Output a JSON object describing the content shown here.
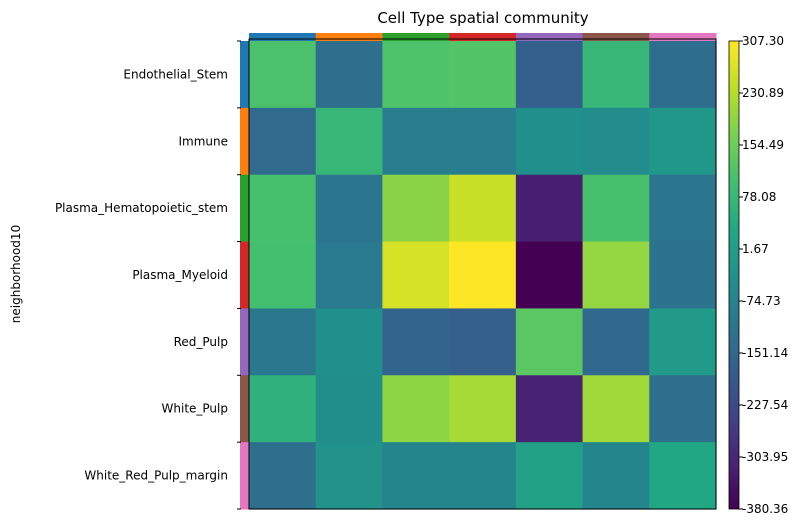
{
  "chart_data": {
    "type": "heatmap",
    "title": "Cell Type spatial community",
    "ylabel": "neighborhood10",
    "rows": [
      "Endothelial_Stem",
      "Immune",
      "Plasma_Hematopoietic_stem",
      "Plasma_Myeloid",
      "Red_Pulp",
      "White_Pulp",
      "White_Red_Pulp_margin"
    ],
    "row_colors": [
      "#1f77b4",
      "#ff7f0e",
      "#2ca02c",
      "#d62728",
      "#9467bd",
      "#8c564b",
      "#e377c2"
    ],
    "col_colors": [
      "#1f77b4",
      "#ff7f0e",
      "#2ca02c",
      "#d62728",
      "#9467bd",
      "#8c564b",
      "#e377c2"
    ],
    "values": [
      [
        110,
        -130,
        115,
        120,
        -170,
        75,
        -135
      ],
      [
        -140,
        75,
        -90,
        -90,
        -40,
        -50,
        -20
      ],
      [
        105,
        -110,
        185,
        250,
        -320,
        105,
        -110
      ],
      [
        100,
        -100,
        265,
        307.3,
        -380.36,
        195,
        -120
      ],
      [
        -105,
        -40,
        -160,
        -175,
        130,
        -150,
        -10
      ],
      [
        60,
        -45,
        190,
        215,
        -315,
        210,
        -130
      ],
      [
        -130,
        -30,
        -70,
        -70,
        10,
        -70,
        30
      ]
    ],
    "colorbar": {
      "min": -380.36,
      "max": 307.3,
      "ticks": [
        "307.30",
        "230.89",
        "154.49",
        "78.08",
        "1.67",
        "-74.73",
        "-151.14",
        "-227.54",
        "-303.95",
        "-380.36"
      ]
    },
    "colormap": "viridis"
  }
}
